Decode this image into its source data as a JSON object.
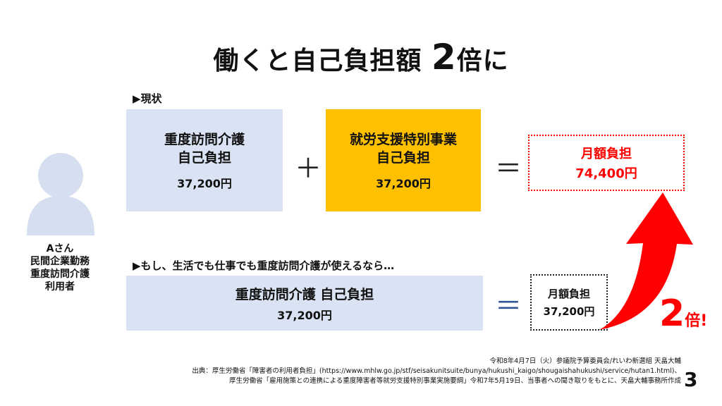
{
  "title": {
    "text": "働くと自己負担額",
    "big": "2",
    "suffix": "倍に"
  },
  "person": {
    "lines": [
      "Aさん",
      "民間企業勤務",
      "重度訪問介護",
      "利用者"
    ]
  },
  "current": {
    "label": "▶現状",
    "box1": {
      "line1": "重度訪問介護",
      "line2": "自己負担",
      "amount": "37,200円"
    },
    "plus": "＋",
    "box2": {
      "line1": "就労支援特別事業",
      "line2": "自己負担",
      "amount": "37,200円"
    },
    "equals": "＝",
    "total": {
      "label": "月額負担",
      "amount": "74,400円"
    }
  },
  "ifcase": {
    "label": "▶もし、生活でも仕事でも重度訪問介護が使えるなら…",
    "box": {
      "line1": "重度訪問介護 自己負担",
      "amount": "37,200円"
    },
    "equals": "＝",
    "total": {
      "label": "月額負担",
      "amount": "37,200円"
    }
  },
  "badge": {
    "num": "2",
    "suffix": "倍!"
  },
  "footer": {
    "line1": "令和8年4月7日（火）参議院予算委員会/れいわ新選組 天畠大輔",
    "line2": "出典：厚生労働省「障害者の利用者負担」(https://www.mhlw.go.jp/stf/seisakunitsuite/bunya/hukushi_kaigo/shougaishahukushi/service/hutan1.html)、",
    "line3": "厚生労働省「雇用施策との連携による重度障害者等就労支援特別事業実施要綱」令和7年5月19日、当事者への聞き取りをもとに、天畠大輔事務所作成"
  },
  "page_number": "3",
  "colors": {
    "blue_box": "#dae3f3",
    "yellow_box": "#ffc000",
    "accent_red": "#ff0000",
    "person_icon": "#d6dff0"
  }
}
